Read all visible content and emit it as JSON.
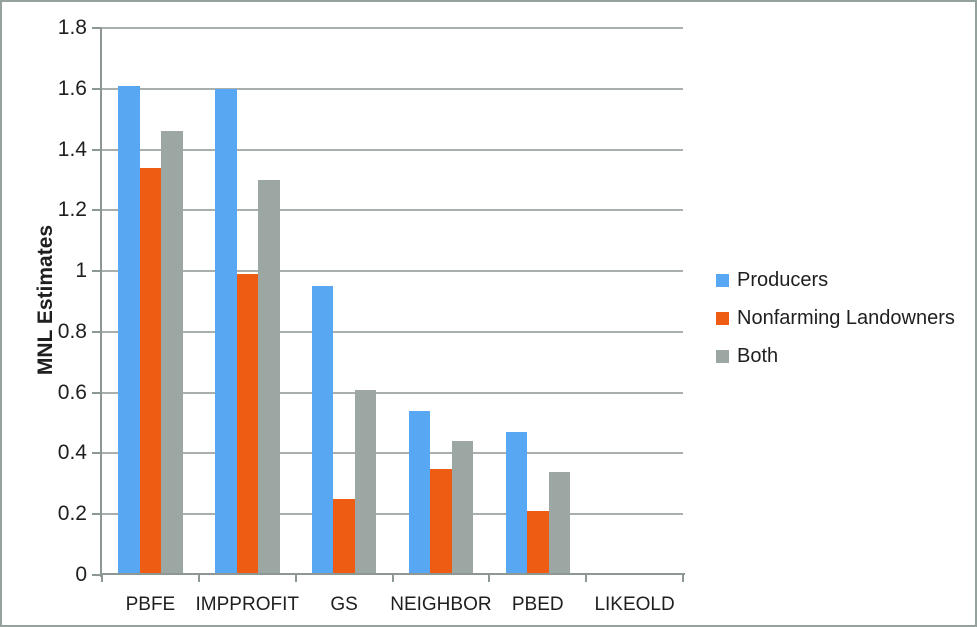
{
  "figure": {
    "border_color": "#95a19d",
    "background_color": "#ffffff",
    "gridline_color": "#a8afac",
    "axis_color": "#8d9894",
    "text_color": "#1f1f1f"
  },
  "chart_data": {
    "type": "bar",
    "title": "",
    "xlabel": "",
    "ylabel": "MNL Estimates",
    "categories": [
      "PBFE",
      "IMPPROFIT",
      "GS",
      "NEIGHBOR",
      "PBED",
      "LIKEOLD"
    ],
    "series": [
      {
        "name": "Producers",
        "color": "#57a7f3",
        "values": [
          1.61,
          1.6,
          0.95,
          0.54,
          0.47,
          0
        ]
      },
      {
        "name": "Nonfarming Landowners",
        "color": "#ee5b13",
        "values": [
          1.34,
          0.99,
          0.25,
          0.35,
          0.21,
          0
        ]
      },
      {
        "name": "Both",
        "color": "#9ca7a3",
        "values": [
          1.46,
          1.3,
          0.61,
          0.44,
          0.34,
          0
        ]
      }
    ],
    "ylim": [
      0,
      1.8
    ],
    "ytick_step": 0.2,
    "ytick_labels": [
      "0",
      "0.2",
      "0.4",
      "0.6",
      "0.8",
      "1",
      "1.2",
      "1.4",
      "1.6",
      "1.8"
    ],
    "grid": true,
    "legend_position": "right"
  }
}
